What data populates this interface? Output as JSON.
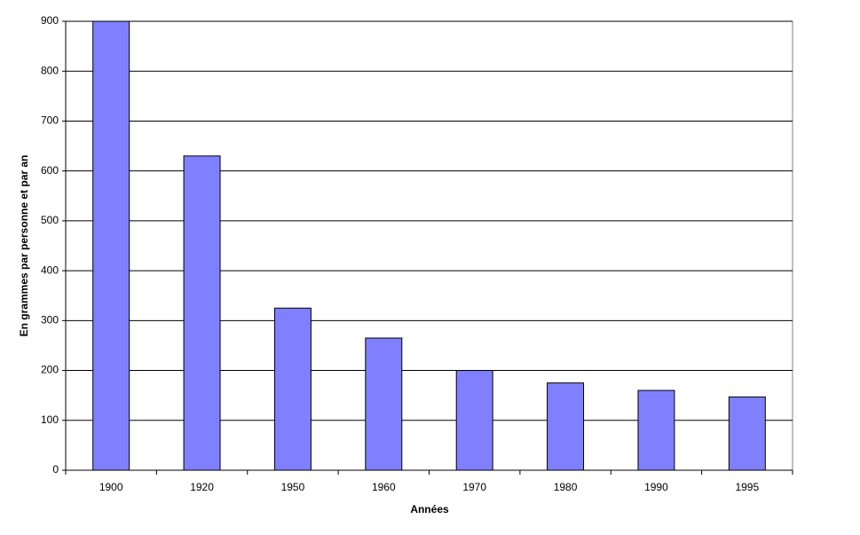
{
  "chart_data": {
    "type": "bar",
    "categories": [
      "1900",
      "1920",
      "1950",
      "1960",
      "1970",
      "1980",
      "1990",
      "1995"
    ],
    "values": [
      900,
      630,
      325,
      265,
      200,
      175,
      160,
      147
    ],
    "color": "#8080ff",
    "ylim": [
      0,
      900
    ],
    "yticks": [
      0,
      100,
      200,
      300,
      400,
      500,
      600,
      700,
      800,
      900
    ],
    "grid": true,
    "x_label": "Années",
    "y_label": "En grammes par personne et par an"
  }
}
